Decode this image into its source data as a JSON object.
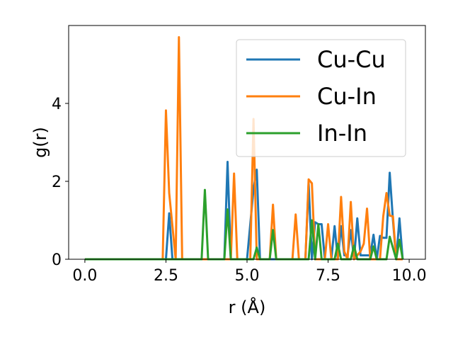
{
  "chart_data": {
    "type": "line",
    "title": "",
    "xlabel": "r (Å)",
    "ylabel": "g(r)",
    "xlim": [
      -0.5,
      10.5
    ],
    "ylim": [
      0,
      6.0
    ],
    "xticks": [
      0.0,
      2.5,
      5.0,
      7.5,
      10.0
    ],
    "xtick_labels": [
      "0.0",
      "2.5",
      "5.0",
      "7.5",
      "10.0"
    ],
    "yticks": [
      0,
      2,
      4
    ],
    "ytick_labels": [
      "0",
      "2",
      "4"
    ],
    "grid": false,
    "legend_position": "top-right",
    "series": [
      {
        "name": "Cu-Cu",
        "color": "#1f77b4",
        "x": [
          0.0,
          2.5,
          2.6,
          2.7,
          4.3,
          4.4,
          4.5,
          5.0,
          5.2,
          5.3,
          5.4,
          6.8,
          6.9,
          7.0,
          7.1,
          7.2,
          7.3,
          7.4,
          7.6,
          7.7,
          7.8,
          7.9,
          8.0,
          8.1,
          8.2,
          8.3,
          8.4,
          8.5,
          8.6,
          8.7,
          8.8,
          8.9,
          9.0,
          9.1,
          9.2,
          9.3,
          9.4,
          9.5,
          9.6,
          9.7,
          9.8
        ],
        "y": [
          0,
          0,
          1.18,
          0,
          0,
          2.5,
          0,
          0,
          1.8,
          2.3,
          0,
          0,
          1.95,
          0,
          0.95,
          0.9,
          0.9,
          0,
          0,
          0.85,
          0,
          0.85,
          0.1,
          0.1,
          0.75,
          0,
          1.05,
          0.1,
          0.1,
          0.1,
          0.1,
          0.63,
          0,
          0.6,
          0.55,
          0.55,
          2.22,
          1.0,
          0,
          1.05,
          0
        ],
        "labels": []
      },
      {
        "name": "Cu-In",
        "color": "#ff7f0e",
        "x": [
          0.0,
          2.4,
          2.5,
          2.6,
          2.8,
          2.9,
          3.0,
          4.5,
          4.6,
          4.7,
          5.1,
          5.2,
          5.3,
          5.7,
          5.8,
          5.9,
          6.4,
          6.5,
          6.6,
          6.8,
          6.9,
          7.0,
          7.1,
          7.4,
          7.5,
          7.6,
          7.8,
          7.9,
          8.0,
          8.1,
          8.2,
          8.3,
          8.5,
          8.6,
          8.7,
          8.8,
          9.1,
          9.2,
          9.3,
          9.4,
          9.5,
          9.6,
          9.8
        ],
        "y": [
          0,
          0,
          3.82,
          1.7,
          0,
          5.7,
          0,
          0,
          2.2,
          0,
          0,
          3.6,
          0,
          0,
          1.4,
          0,
          0,
          1.15,
          0,
          0,
          2.05,
          1.95,
          0,
          0,
          0.9,
          0,
          0,
          1.6,
          0.2,
          0,
          1.47,
          0,
          0.2,
          0.4,
          1.3,
          0,
          0,
          1.1,
          1.7,
          1.12,
          1.1,
          0,
          0
        ],
        "labels": []
      },
      {
        "name": "In-In",
        "color": "#2ca02c",
        "x": [
          0.0,
          3.6,
          3.7,
          3.8,
          4.3,
          4.4,
          4.5,
          5.2,
          5.3,
          5.4,
          5.7,
          5.8,
          5.9,
          6.9,
          7.0,
          7.1,
          7.2,
          7.3,
          7.4,
          7.7,
          7.8,
          7.9,
          8.2,
          8.3,
          8.4,
          8.8,
          8.9,
          9.0,
          9.3,
          9.4,
          9.6,
          9.7,
          9.8
        ],
        "y": [
          0,
          0,
          1.78,
          0,
          0,
          1.28,
          0,
          0,
          0.3,
          0,
          0,
          0.75,
          0,
          0,
          1.0,
          0,
          0.9,
          0,
          0,
          0,
          0.4,
          0,
          0,
          0.35,
          0,
          0,
          0.33,
          0,
          0,
          0.58,
          0,
          0.5,
          0
        ],
        "labels": []
      }
    ]
  }
}
